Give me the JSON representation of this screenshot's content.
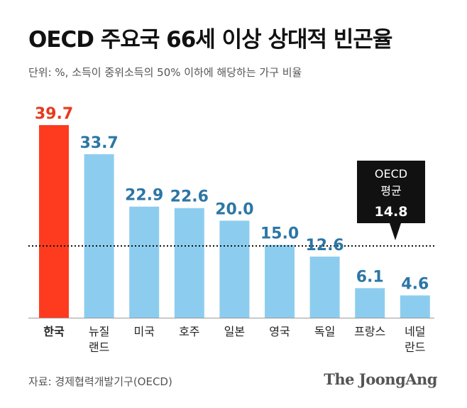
{
  "chart_data": {
    "type": "bar",
    "title": "OECD 주요국 66세 이상 상대적 빈곤율",
    "subtitle": "단위: %, 소득이 중위소득의 50% 이하에 해당하는 가구 비율",
    "categories": [
      [
        "한국"
      ],
      [
        "뉴질",
        "랜드"
      ],
      [
        "미국"
      ],
      [
        "호주"
      ],
      [
        "일본"
      ],
      [
        "영국"
      ],
      [
        "독일"
      ],
      [
        "프랑스"
      ],
      [
        "네덜",
        "란드"
      ]
    ],
    "values": [
      39.7,
      33.7,
      22.9,
      22.6,
      20.0,
      15.0,
      12.6,
      6.1,
      4.6
    ],
    "value_labels": [
      "39.7",
      "33.7",
      "22.9",
      "22.6",
      "20.0",
      "15.0",
      "12.6",
      "6.1",
      "4.6"
    ],
    "ylim": [
      0,
      39.7
    ],
    "grid": false,
    "reference_line": {
      "label_lines": [
        "OECD",
        "평균"
      ],
      "value_label": "14.8",
      "value": 14.8
    },
    "colors": {
      "highlight_bar": "#ff3b1f",
      "bar": "#8ccdef",
      "highlight_label": "#e8391c",
      "label": "#2c76a6",
      "callout_bg": "#111111",
      "callout_text": "#ffffff",
      "baseline": "#9a9a9a"
    }
  },
  "footer": {
    "source": "자료: 경제협력개발기구(OECD)",
    "brand": "The JoongAng"
  }
}
